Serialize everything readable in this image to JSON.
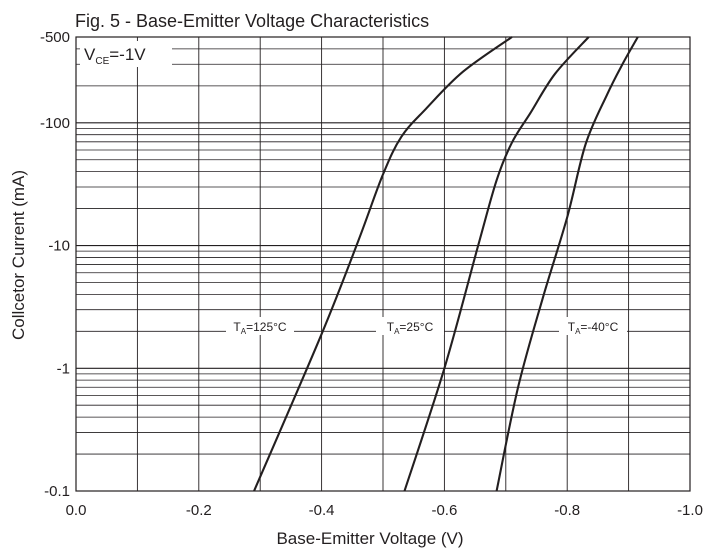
{
  "chart_data": {
    "type": "line",
    "title": "Fig. 5 - Base-Emitter Voltage Characteristics",
    "xlabel": "Base-Emitter Voltage (V)",
    "ylabel": "Collcetor Current (mA)",
    "x_scale": "linear",
    "y_scale": "log",
    "xlim": [
      0.0,
      -1.0
    ],
    "ylim": [
      -0.1,
      -500
    ],
    "grid": true,
    "x_ticks": [
      0.0,
      -0.2,
      -0.4,
      -0.6,
      -0.8,
      -1.0
    ],
    "x_tick_labels": [
      "0.0",
      "-0.2",
      "-0.4",
      "-0.6",
      "-0.8",
      "-1.0"
    ],
    "y_ticks": [
      -0.1,
      -1,
      -10,
      -100,
      -500
    ],
    "y_tick_labels": [
      "-0.1",
      "-1",
      "-10",
      "-100",
      "-500"
    ],
    "annotation": {
      "main": "V",
      "sub": "CE",
      "rest": "=-1V"
    },
    "series": [
      {
        "name": "TA=125°C",
        "label": {
          "main": "T",
          "sub": "A",
          "rest": "=125°C"
        },
        "x": [
          -0.29,
          -0.4,
          -0.46,
          -0.5,
          -0.53,
          -0.57,
          -0.63,
          -0.71
        ],
        "y": [
          -0.1,
          -1.9,
          -11,
          -38,
          -77,
          -130,
          -260,
          -500
        ]
      },
      {
        "name": "TA=25°C",
        "label": {
          "main": "T",
          "sub": "A",
          "rest": "=25°C"
        },
        "x": [
          -0.535,
          -0.6,
          -0.655,
          -0.685,
          -0.71,
          -0.74,
          -0.78,
          -0.835
        ],
        "y": [
          -0.1,
          -1,
          -10,
          -34,
          -69,
          -120,
          -250,
          -500
        ]
      },
      {
        "name": "TA=-40°C",
        "label": {
          "main": "T",
          "sub": "A",
          "rest": "=-40°C"
        },
        "x": [
          -0.685,
          -0.72,
          -0.76,
          -0.8,
          -0.83,
          -0.865,
          -0.89,
          -0.915
        ],
        "y": [
          -0.1,
          -0.7,
          -3.7,
          -17,
          -67,
          -170,
          -300,
          -500
        ]
      }
    ]
  }
}
